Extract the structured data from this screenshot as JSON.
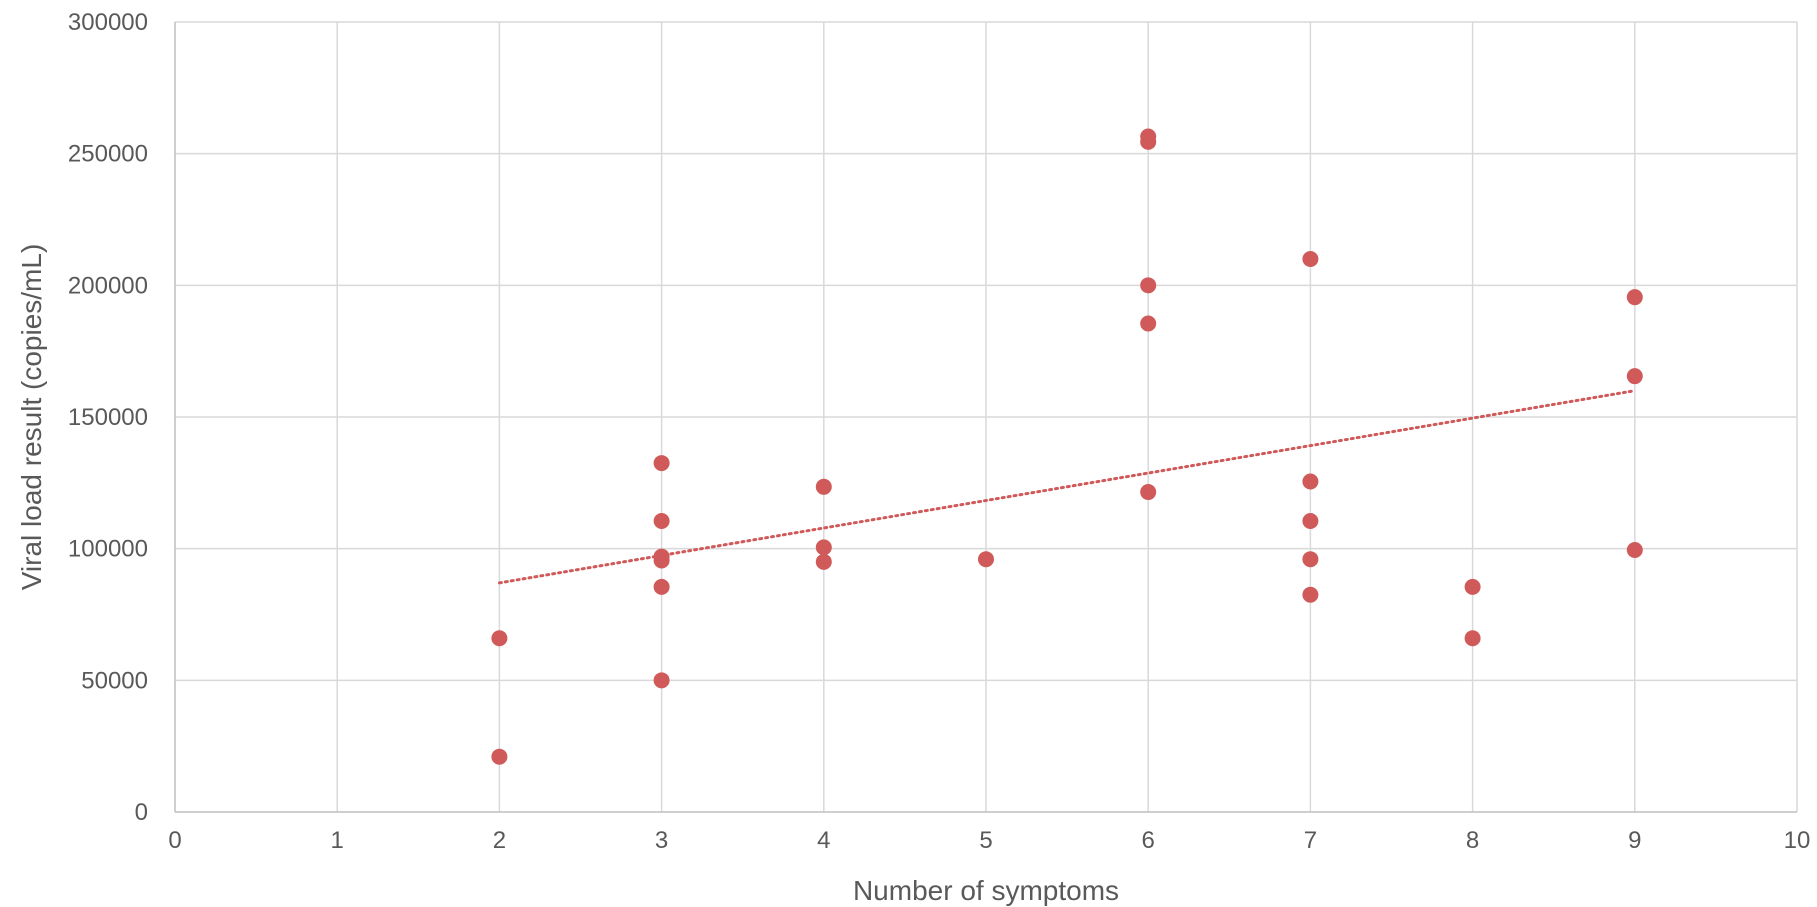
{
  "chart_data": {
    "type": "scatter",
    "title": "",
    "xlabel": "Number of symptoms",
    "ylabel": "Viral load result (copies/mL)",
    "xlim": [
      0,
      10
    ],
    "ylim": [
      0,
      300000
    ],
    "x_ticks": [
      "0",
      "1",
      "2",
      "3",
      "4",
      "5",
      "6",
      "7",
      "8",
      "9",
      "10"
    ],
    "y_ticks": [
      "0",
      "50000",
      "100000",
      "150000",
      "200000",
      "250000",
      "300000"
    ],
    "grid": true,
    "legend": "none",
    "marker_color": "#d05a5a",
    "trendline_color": "#d05a5a",
    "series": [
      {
        "x": [
          2,
          2,
          3,
          3,
          3,
          3,
          3,
          3,
          4,
          4,
          4,
          5,
          6,
          6,
          6,
          6,
          6,
          7,
          7,
          7,
          7,
          7,
          8,
          8,
          9,
          9,
          9
        ],
        "y": [
          66000,
          21000,
          132500,
          110500,
          97000,
          95500,
          85500,
          50000,
          123500,
          100500,
          95000,
          96000,
          256500,
          254500,
          200000,
          185500,
          121500,
          210000,
          125500,
          110500,
          96000,
          82500,
          85500,
          66000,
          195500,
          165500,
          99500
        ]
      }
    ],
    "trendline": {
      "type": "linear",
      "style": "dotted",
      "x": [
        2,
        9
      ],
      "y": [
        87000,
        160000
      ]
    }
  }
}
